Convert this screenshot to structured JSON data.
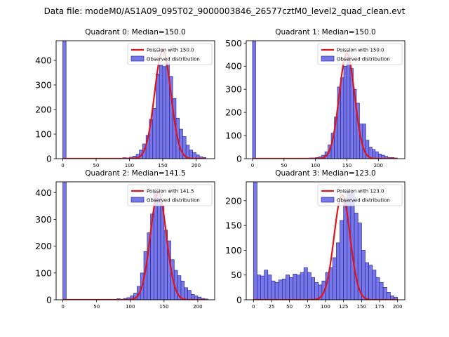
{
  "figure_title": "Data file: modeM0/AS1A09_095T02_9000003846_26577cztM0_level2_quad_clean.evt",
  "colors": {
    "bar_fill": "#7777e9",
    "bar_edge": "#2b2b9a",
    "curve": "#e0141a"
  },
  "chart_data": [
    {
      "type": "bar",
      "title": "Quadrant 0: Median=150.0",
      "xlim": [
        -10,
        228
      ],
      "ylim": [
        0,
        480
      ],
      "xticks": [
        0,
        50,
        100,
        150,
        200
      ],
      "yticks": [
        0,
        100,
        200,
        300,
        400
      ],
      "bin_width": 5,
      "bins": [
        [
          0,
          480
        ],
        [
          90,
          4
        ],
        [
          95,
          3
        ],
        [
          100,
          6
        ],
        [
          105,
          10
        ],
        [
          110,
          18
        ],
        [
          115,
          35
        ],
        [
          120,
          60
        ],
        [
          125,
          95
        ],
        [
          130,
          160
        ],
        [
          135,
          205
        ],
        [
          140,
          345
        ],
        [
          145,
          380
        ],
        [
          150,
          375
        ],
        [
          155,
          390
        ],
        [
          160,
          335
        ],
        [
          165,
          245
        ],
        [
          170,
          165
        ],
        [
          175,
          120
        ],
        [
          180,
          90
        ],
        [
          185,
          55
        ],
        [
          190,
          35
        ],
        [
          195,
          25
        ],
        [
          200,
          15
        ],
        [
          205,
          8
        ],
        [
          210,
          5
        ]
      ],
      "curve": {
        "mean": 150.0,
        "peak": 440,
        "range": [
          0,
          215
        ]
      },
      "legend": {
        "curve_label": "Poission with 150.0",
        "hist_label": "Observed distribution",
        "position": "top-right"
      }
    },
    {
      "type": "bar",
      "title": "Quadrant 1: Median=150.0",
      "xlim": [
        -10,
        242
      ],
      "ylim": [
        0,
        510
      ],
      "xticks": [
        0,
        50,
        100,
        150,
        200
      ],
      "yticks": [
        0,
        100,
        200,
        300,
        400,
        500
      ],
      "bin_width": 5,
      "bins": [
        [
          0,
          510
        ],
        [
          90,
          3
        ],
        [
          95,
          3
        ],
        [
          100,
          5
        ],
        [
          105,
          8
        ],
        [
          110,
          15
        ],
        [
          115,
          30
        ],
        [
          120,
          60
        ],
        [
          125,
          110
        ],
        [
          130,
          180
        ],
        [
          135,
          310
        ],
        [
          140,
          350
        ],
        [
          145,
          400
        ],
        [
          150,
          440
        ],
        [
          155,
          390
        ],
        [
          160,
          300
        ],
        [
          165,
          240
        ],
        [
          170,
          150
        ],
        [
          175,
          150
        ],
        [
          180,
          80
        ],
        [
          185,
          50
        ],
        [
          190,
          40
        ],
        [
          195,
          30
        ],
        [
          200,
          20
        ],
        [
          205,
          15
        ],
        [
          210,
          10
        ],
        [
          215,
          5
        ],
        [
          220,
          5
        ],
        [
          225,
          3
        ]
      ],
      "curve": {
        "mean": 150.0,
        "peak": 455,
        "range": [
          0,
          230
        ]
      },
      "legend": {
        "curve_label": "Poission with 150.0",
        "hist_label": "Observed distribution",
        "position": "top-right"
      }
    },
    {
      "type": "bar",
      "title": "Quadrant 2: Median=141.5",
      "xlim": [
        -10,
        225
      ],
      "ylim": [
        0,
        440
      ],
      "xticks": [
        0,
        50,
        100,
        150,
        200
      ],
      "yticks": [
        0,
        100,
        200,
        300,
        400
      ],
      "bin_width": 5,
      "bins": [
        [
          0,
          440
        ],
        [
          80,
          4
        ],
        [
          85,
          2
        ],
        [
          90,
          5
        ],
        [
          95,
          8
        ],
        [
          100,
          15
        ],
        [
          105,
          25
        ],
        [
          110,
          50
        ],
        [
          115,
          100
        ],
        [
          120,
          180
        ],
        [
          125,
          250
        ],
        [
          130,
          320
        ],
        [
          135,
          400
        ],
        [
          140,
          380
        ],
        [
          145,
          350
        ],
        [
          150,
          260
        ],
        [
          155,
          220
        ],
        [
          160,
          150
        ],
        [
          165,
          110
        ],
        [
          170,
          90
        ],
        [
          175,
          70
        ],
        [
          180,
          45
        ],
        [
          185,
          35
        ],
        [
          190,
          20
        ],
        [
          195,
          15
        ],
        [
          200,
          10
        ],
        [
          205,
          5
        ],
        [
          210,
          3
        ]
      ],
      "curve": {
        "mean": 141.5,
        "peak": 400,
        "range": [
          0,
          212
        ]
      },
      "legend": {
        "curve_label": "Poission with 141.5",
        "hist_label": "Observed distribution",
        "position": "top-right"
      }
    },
    {
      "type": "bar",
      "title": "Quadrant 3: Median=123.0",
      "xlim": [
        -10,
        210
      ],
      "ylim": [
        0,
        238
      ],
      "xticks": [
        0,
        25,
        50,
        75,
        100,
        125,
        150,
        175,
        200
      ],
      "yticks": [
        0,
        50,
        100,
        150,
        200
      ],
      "bin_width": 5,
      "bins": [
        [
          0,
          238
        ],
        [
          5,
          50
        ],
        [
          10,
          48
        ],
        [
          15,
          60
        ],
        [
          20,
          50
        ],
        [
          25,
          38
        ],
        [
          30,
          35
        ],
        [
          35,
          40
        ],
        [
          40,
          42
        ],
        [
          45,
          50
        ],
        [
          50,
          45
        ],
        [
          55,
          52
        ],
        [
          60,
          50
        ],
        [
          65,
          55
        ],
        [
          70,
          65
        ],
        [
          75,
          55
        ],
        [
          80,
          45
        ],
        [
          85,
          35
        ],
        [
          90,
          30
        ],
        [
          95,
          38
        ],
        [
          100,
          55
        ],
        [
          105,
          65
        ],
        [
          110,
          85
        ],
        [
          115,
          115
        ],
        [
          120,
          160
        ],
        [
          125,
          200
        ],
        [
          130,
          220
        ],
        [
          135,
          215
        ],
        [
          140,
          175
        ],
        [
          145,
          155
        ],
        [
          150,
          100
        ],
        [
          155,
          75
        ],
        [
          160,
          70
        ],
        [
          165,
          60
        ],
        [
          170,
          45
        ],
        [
          175,
          35
        ],
        [
          180,
          25
        ],
        [
          185,
          15
        ],
        [
          190,
          8
        ],
        [
          195,
          5
        ]
      ],
      "curve": {
        "mean": 123.0,
        "peak": 212,
        "range": [
          0,
          200
        ]
      },
      "legend": {
        "curve_label": "Poission with 123.0",
        "hist_label": "Observed distribution",
        "position": "top-right"
      }
    }
  ]
}
